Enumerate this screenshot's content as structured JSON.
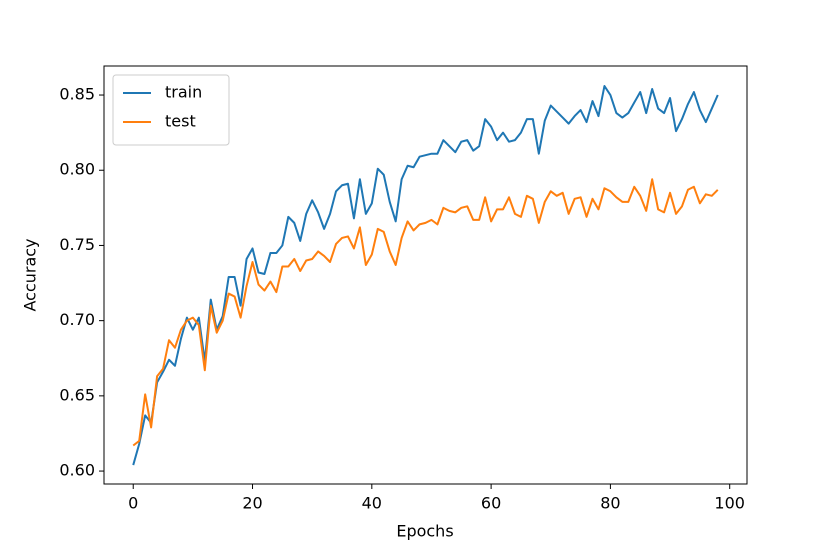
{
  "chart_data": {
    "type": "line",
    "xlabel": "Epochs",
    "ylabel": "Accuracy",
    "x": [
      0,
      1,
      2,
      3,
      4,
      5,
      6,
      7,
      8,
      9,
      10,
      11,
      12,
      13,
      14,
      15,
      16,
      17,
      18,
      19,
      20,
      21,
      22,
      23,
      24,
      25,
      26,
      27,
      28,
      29,
      30,
      31,
      32,
      33,
      34,
      35,
      36,
      37,
      38,
      39,
      40,
      41,
      42,
      43,
      44,
      45,
      46,
      47,
      48,
      49,
      50,
      51,
      52,
      53,
      54,
      55,
      56,
      57,
      58,
      59,
      60,
      61,
      62,
      63,
      64,
      65,
      66,
      67,
      68,
      69,
      70,
      71,
      72,
      73,
      74,
      75,
      76,
      77,
      78,
      79,
      80,
      81,
      82,
      83,
      84,
      85,
      86,
      87,
      88,
      89,
      90,
      91,
      92,
      93,
      94,
      95,
      96,
      97,
      98
    ],
    "series": [
      {
        "name": "train",
        "color": "#1f77b4",
        "values": [
          0.604,
          0.618,
          0.637,
          0.632,
          0.659,
          0.666,
          0.674,
          0.67,
          0.688,
          0.702,
          0.694,
          0.702,
          0.673,
          0.714,
          0.694,
          0.703,
          0.729,
          0.729,
          0.71,
          0.741,
          0.748,
          0.732,
          0.731,
          0.745,
          0.745,
          0.75,
          0.769,
          0.765,
          0.753,
          0.771,
          0.78,
          0.772,
          0.761,
          0.771,
          0.786,
          0.79,
          0.791,
          0.768,
          0.794,
          0.771,
          0.778,
          0.801,
          0.797,
          0.779,
          0.766,
          0.794,
          0.803,
          0.802,
          0.809,
          0.81,
          0.811,
          0.811,
          0.82,
          0.816,
          0.812,
          0.819,
          0.82,
          0.813,
          0.816,
          0.834,
          0.829,
          0.82,
          0.825,
          0.819,
          0.82,
          0.825,
          0.834,
          0.834,
          0.811,
          0.833,
          0.843,
          0.839,
          0.835,
          0.831,
          0.836,
          0.84,
          0.832,
          0.846,
          0.836,
          0.856,
          0.85,
          0.838,
          0.835,
          0.838,
          0.845,
          0.852,
          0.838,
          0.854,
          0.841,
          0.838,
          0.848,
          0.826,
          0.834,
          0.844,
          0.852,
          0.84,
          0.832,
          0.841,
          0.85
        ]
      },
      {
        "name": "test",
        "color": "#ff7f0e",
        "values": [
          0.617,
          0.62,
          0.651,
          0.629,
          0.663,
          0.668,
          0.687,
          0.682,
          0.694,
          0.7,
          0.702,
          0.697,
          0.667,
          0.71,
          0.692,
          0.7,
          0.718,
          0.716,
          0.702,
          0.723,
          0.739,
          0.724,
          0.72,
          0.726,
          0.719,
          0.736,
          0.736,
          0.741,
          0.733,
          0.74,
          0.741,
          0.746,
          0.743,
          0.739,
          0.751,
          0.755,
          0.756,
          0.748,
          0.762,
          0.737,
          0.744,
          0.761,
          0.759,
          0.746,
          0.737,
          0.755,
          0.766,
          0.76,
          0.764,
          0.765,
          0.767,
          0.764,
          0.775,
          0.773,
          0.772,
          0.775,
          0.776,
          0.767,
          0.767,
          0.782,
          0.766,
          0.774,
          0.774,
          0.782,
          0.771,
          0.769,
          0.783,
          0.781,
          0.765,
          0.779,
          0.786,
          0.783,
          0.785,
          0.771,
          0.781,
          0.782,
          0.769,
          0.781,
          0.774,
          0.788,
          0.786,
          0.782,
          0.779,
          0.779,
          0.789,
          0.783,
          0.773,
          0.794,
          0.774,
          0.772,
          0.785,
          0.771,
          0.776,
          0.787,
          0.789,
          0.778,
          0.784,
          0.783,
          0.787
        ]
      }
    ],
    "xlim": [
      -4.9,
      102.9
    ],
    "ylim": [
      0.5914,
      0.8693
    ],
    "xticks": [
      0,
      20,
      40,
      60,
      80,
      100
    ],
    "yticks": [
      {
        "value": 0.6,
        "label": "0.60"
      },
      0.65,
      {
        "value": 0.7,
        "label": "0.70"
      },
      0.75,
      {
        "value": 0.8,
        "label": "0.80"
      },
      0.85
    ],
    "legend": "upper left"
  }
}
